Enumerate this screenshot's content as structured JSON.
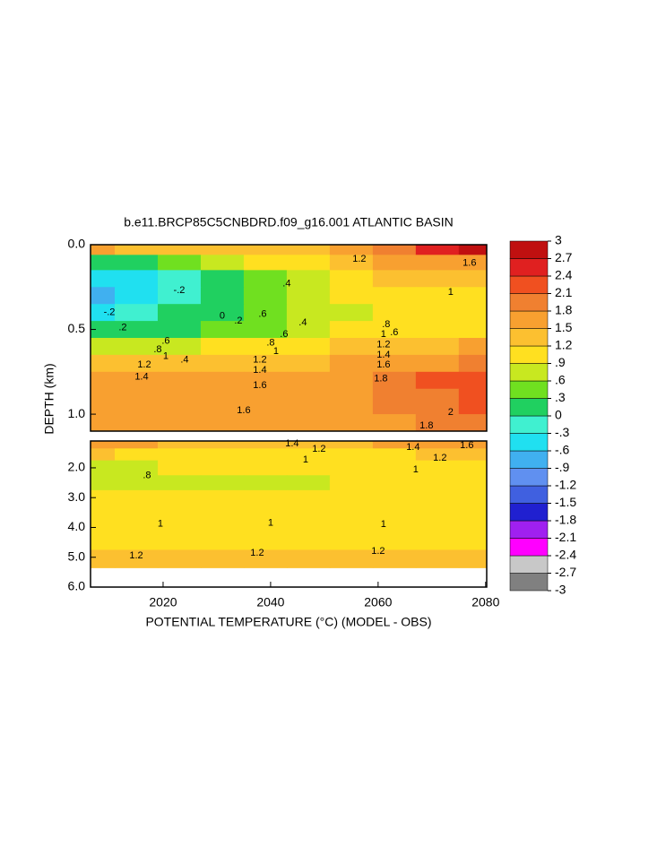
{
  "chart_data": [
    {
      "type": "contour",
      "title": "b.e11.BRCP85C5CNBDRD.f09_g16.001 ATLANTIC BASIN",
      "y_label": "DEPTH (km)",
      "x": [
        2007,
        2015,
        2023,
        2031,
        2039,
        2047,
        2055,
        2063,
        2071,
        2079
      ],
      "xlim": [
        2006.5,
        2080.2
      ],
      "ylim": [
        0,
        1.1
      ],
      "yticks": [
        {
          "value": 0,
          "label": "0.0"
        },
        0.5,
        {
          "value": 1,
          "label": "1.0"
        }
      ],
      "depths": [
        0.02,
        0.1,
        0.2,
        0.3,
        0.4,
        0.5,
        0.6,
        0.7,
        0.8,
        0.9,
        1.1
      ],
      "z": [
        [
          1.5,
          1.4,
          1.3,
          1.2,
          1.3,
          1.4,
          1.6,
          2.0,
          2.6,
          2.8
        ],
        [
          0.2,
          0.3,
          0.4,
          0.6,
          0.9,
          1.1,
          1.3,
          1.5,
          1.7,
          1.8
        ],
        [
          -0.5,
          -0.4,
          -0.2,
          0.1,
          0.4,
          0.7,
          1.0,
          1.2,
          1.2,
          1.2
        ],
        [
          -0.6,
          -0.5,
          -0.2,
          0.2,
          0.5,
          0.7,
          0.9,
          1.1,
          1.1,
          1.1
        ],
        [
          -0.4,
          -0.3,
          0.0,
          0.2,
          0.4,
          0.6,
          0.8,
          1.0,
          1.0,
          1.0
        ],
        [
          0.2,
          0.2,
          0.3,
          0.4,
          0.5,
          0.7,
          0.9,
          1.1,
          1.1,
          1.1
        ],
        [
          0.8,
          0.8,
          0.8,
          0.9,
          1.0,
          1.1,
          1.2,
          1.4,
          1.4,
          1.5
        ],
        [
          1.3,
          1.2,
          1.3,
          1.3,
          1.3,
          1.4,
          1.5,
          1.7,
          1.8,
          1.9
        ],
        [
          1.5,
          1.5,
          1.5,
          1.5,
          1.5,
          1.6,
          1.7,
          1.9,
          2.1,
          2.2
        ],
        [
          1.6,
          1.6,
          1.55,
          1.6,
          1.6,
          1.7,
          1.8,
          1.9,
          2.0,
          2.1
        ],
        [
          1.6,
          1.6,
          1.6,
          1.7,
          1.7,
          1.7,
          1.8,
          1.8,
          1.9,
          1.9
        ]
      ],
      "contour_labels": [
        {
          "x": 2031,
          "y": 0.42,
          "value": 0
        },
        {
          "x": 2034,
          "y": 0.45,
          "value": 0.2,
          "label": ".2"
        },
        {
          "x": 2012.5,
          "y": 0.49,
          "value": 0.2,
          "label": ".2"
        },
        {
          "x": 2024,
          "y": 0.68,
          "value": 0.4,
          "label": ".4"
        },
        {
          "x": 2020.5,
          "y": 0.57,
          "value": 0.6,
          "label": ".6"
        },
        {
          "x": 2019,
          "y": 0.62,
          "value": 0.8,
          "label": ".8"
        },
        {
          "x": 2020.5,
          "y": 0.66,
          "value": 1
        },
        {
          "x": 2016.5,
          "y": 0.71,
          "value": 1.2
        },
        {
          "x": 2016,
          "y": 0.78,
          "value": 1.4
        },
        {
          "x": 2038,
          "y": 0.83,
          "value": 1.6
        },
        {
          "x": 2035,
          "y": 0.98,
          "value": 1.6
        },
        {
          "x": 2060.5,
          "y": 0.79,
          "value": 1.8
        },
        {
          "x": 2073.5,
          "y": 0.99,
          "value": 2
        },
        {
          "x": 2069,
          "y": 1.07,
          "value": 1.8
        },
        {
          "x": 2063,
          "y": 0.52,
          "value": 0.6,
          "label": ".6"
        },
        {
          "x": 2061.5,
          "y": 0.47,
          "value": 0.8,
          "label": ".8"
        },
        {
          "x": 2061,
          "y": 0.53,
          "value": 1
        },
        {
          "x": 2061,
          "y": 0.59,
          "value": 1.2
        },
        {
          "x": 2061,
          "y": 0.65,
          "value": 1.4
        },
        {
          "x": 2061,
          "y": 0.71,
          "value": 1.6
        },
        {
          "x": 2073.5,
          "y": 0.28,
          "value": 1
        },
        {
          "x": 2056.5,
          "y": 0.085,
          "value": 1.2
        },
        {
          "x": 2043,
          "y": 0.23,
          "value": 0.4,
          "label": ".4"
        },
        {
          "x": 2038.5,
          "y": 0.41,
          "value": 0.6,
          "label": ".6"
        },
        {
          "x": 2046,
          "y": 0.46,
          "value": 0.4,
          "label": ".4"
        },
        {
          "x": 2042.5,
          "y": 0.53,
          "value": 0.6,
          "label": ".6"
        },
        {
          "x": 2040,
          "y": 0.58,
          "value": 0.8,
          "label": ".8"
        },
        {
          "x": 2041,
          "y": 0.63,
          "value": 1
        },
        {
          "x": 2038,
          "y": 0.68,
          "value": 1.2
        },
        {
          "x": 2038,
          "y": 0.74,
          "value": 1.4
        },
        {
          "x": 2077,
          "y": 0.11,
          "value": 1.6
        },
        {
          "x": 2010,
          "y": 0.4,
          "value": -0.2,
          "label": "-.2"
        },
        {
          "x": 2023,
          "y": 0.27,
          "value": -0.2,
          "label": "-.2"
        }
      ]
    },
    {
      "type": "contour",
      "x_label": "POTENTIAL TEMPERATURE (°C) (MODEL - OBS)",
      "x": [
        2007,
        2015,
        2023,
        2031,
        2039,
        2047,
        2055,
        2063,
        2071,
        2079
      ],
      "xlim": [
        2006.5,
        2080.2
      ],
      "xticks": [
        2020,
        2040,
        2060,
        2080
      ],
      "ylim": [
        1.1,
        6.0
      ],
      "yticks": [
        {
          "value": 2,
          "label": "2.0"
        },
        {
          "value": 3,
          "label": "3.0"
        },
        {
          "value": 4,
          "label": "4.0"
        },
        {
          "value": 5,
          "label": "5.0"
        },
        {
          "value": 6,
          "label": "6.0"
        }
      ],
      "depths": [
        1.2,
        1.5,
        2.0,
        2.5,
        3.0,
        3.5,
        4.0,
        4.5,
        5.0,
        5.35
      ],
      "z": [
        [
          1.7,
          1.6,
          1.4,
          1.4,
          1.3,
          1.3,
          1.4,
          1.5,
          1.5,
          1.6
        ],
        [
          1.2,
          1.1,
          1.1,
          1.0,
          1.0,
          1.0,
          1.1,
          1.1,
          1.2,
          1.2
        ],
        [
          0.8,
          0.8,
          0.9,
          0.9,
          0.9,
          0.9,
          0.95,
          0.95,
          1.0,
          1.0
        ],
        [
          0.85,
          0.85,
          0.85,
          0.85,
          0.85,
          0.85,
          0.9,
          0.9,
          0.9,
          0.9
        ],
        [
          0.9,
          0.9,
          0.9,
          0.9,
          0.9,
          0.9,
          0.9,
          0.9,
          0.9,
          0.9
        ],
        [
          0.95,
          0.95,
          0.95,
          0.95,
          0.95,
          0.95,
          0.95,
          0.95,
          0.95,
          0.95
        ],
        [
          1.0,
          1.0,
          1.0,
          1.0,
          1.0,
          1.0,
          1.0,
          1.0,
          1.0,
          1.0
        ],
        [
          1.1,
          1.1,
          1.1,
          1.1,
          1.1,
          1.1,
          1.1,
          1.1,
          1.1,
          1.1
        ],
        [
          1.2,
          1.2,
          1.2,
          1.2,
          1.2,
          1.2,
          1.2,
          1.2,
          1.2,
          1.2
        ],
        [
          1.25,
          1.25,
          1.25,
          1.25,
          1.25,
          1.25,
          1.25,
          1.25,
          1.25,
          1.25
        ]
      ],
      "contour_labels": [
        {
          "x": 2044,
          "y": 1.19,
          "value": 1.4
        },
        {
          "x": 2049,
          "y": 1.37,
          "value": 1.2
        },
        {
          "x": 2046.5,
          "y": 1.73,
          "value": 1
        },
        {
          "x": 2066.5,
          "y": 1.31,
          "value": 1.4
        },
        {
          "x": 2076.5,
          "y": 1.25,
          "value": 1.6
        },
        {
          "x": 2071.5,
          "y": 1.67,
          "value": 1.2
        },
        {
          "x": 2067,
          "y": 2.06,
          "value": 1
        },
        {
          "x": 2017,
          "y": 2.26,
          "value": 0.8,
          "label": ".8"
        },
        {
          "x": 2019.5,
          "y": 3.88,
          "value": 1
        },
        {
          "x": 2040,
          "y": 3.85,
          "value": 1
        },
        {
          "x": 2061,
          "y": 3.9,
          "value": 1
        },
        {
          "x": 2015,
          "y": 4.95,
          "value": 1.2
        },
        {
          "x": 2037.5,
          "y": 4.86,
          "value": 1.2
        },
        {
          "x": 2060,
          "y": 4.8,
          "value": 1.2
        }
      ]
    }
  ],
  "colorbar": {
    "range": [
      -3,
      3
    ],
    "colors": [
      "#808080",
      "#c8c8c8",
      "#ff00ff",
      "#a020f0",
      "#2020d0",
      "#4060e0",
      "#6090f0",
      "#40b0f0",
      "#20e0f0",
      "#40f0d0",
      "#20d060",
      "#70e020",
      "#c8e820",
      "#ffe020",
      "#fcc030",
      "#f8a030",
      "#f08030",
      "#f05020",
      "#e02020",
      "#c01010"
    ],
    "ticks": [
      3,
      2.7,
      2.4,
      2.1,
      1.8,
      1.5,
      1.2,
      {
        "value": 0.9,
        "label": ".9"
      },
      {
        "value": 0.6,
        "label": ".6"
      },
      {
        "value": 0.3,
        "label": ".3"
      },
      0,
      {
        "value": -0.3,
        "label": "-.3"
      },
      {
        "value": -0.6,
        "label": "-.6"
      },
      {
        "value": -0.9,
        "label": "-.9"
      },
      -1.2,
      -1.5,
      -1.8,
      -2.1,
      -2.4,
      -2.7,
      -3
    ]
  }
}
